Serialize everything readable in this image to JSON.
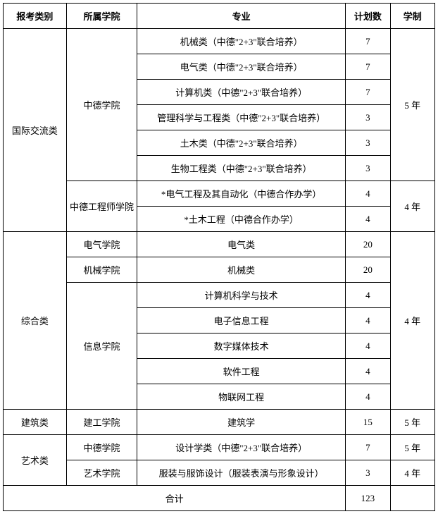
{
  "headers": {
    "category": "报考类别",
    "college": "所属学院",
    "major": "专业",
    "plan": "计划数",
    "duration": "学制"
  },
  "categories": {
    "international": "国际交流类",
    "comprehensive": "综合类",
    "architecture": "建筑类",
    "art": "艺术类"
  },
  "colleges": {
    "zhongde": "中德学院",
    "zhongde_engineer": "中德工程师学院",
    "electrical": "电气学院",
    "mechanical": "机械学院",
    "information": "信息学院",
    "construction": "建工学院",
    "art": "艺术学院"
  },
  "majors": {
    "m1": "机械类（中德\"2+3\"联合培养）",
    "m2": "电气类（中德\"2+3\"联合培养）",
    "m3": "计算机类（中德\"2+3\"联合培养）",
    "m4": "管理科学与工程类（中德\"2+3\"联合培养）",
    "m5": "土木类（中德\"2+3\"联合培养）",
    "m6": "生物工程类（中德\"2+3\"联合培养）",
    "m7": "*电气工程及其自动化（中德合作办学）",
    "m8": "*土木工程（中德合作办学）",
    "m9": "电气类",
    "m10": "机械类",
    "m11": "计算机科学与技术",
    "m12": "电子信息工程",
    "m13": "数字媒体技术",
    "m14": "软件工程",
    "m15": "物联网工程",
    "m16": "建筑学",
    "m17": "设计学类（中德\"2+3\"联合培养）",
    "m18": "服装与服饰设计（服装表演与形象设计）"
  },
  "plans": {
    "p1": "7",
    "p2": "7",
    "p3": "7",
    "p4": "3",
    "p5": "3",
    "p6": "3",
    "p7": "4",
    "p8": "4",
    "p9": "20",
    "p10": "20",
    "p11": "4",
    "p12": "4",
    "p13": "4",
    "p14": "4",
    "p15": "4",
    "p16": "15",
    "p17": "7",
    "p18": "3"
  },
  "durations": {
    "d5": "5 年",
    "d4": "4 年"
  },
  "total": {
    "label": "合计",
    "value": "123"
  }
}
